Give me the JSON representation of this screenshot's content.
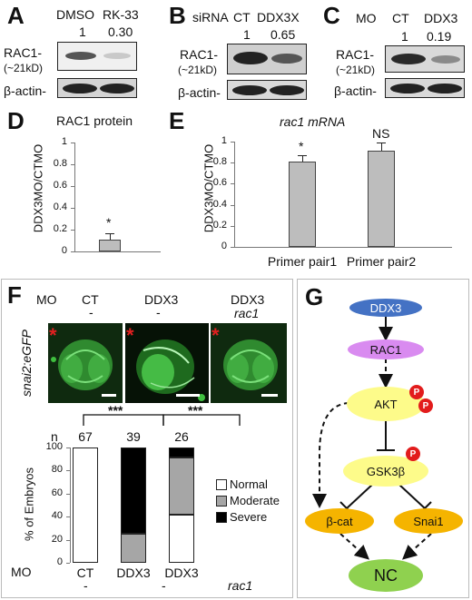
{
  "panels": {
    "A": {
      "letter": "A",
      "conditions": [
        "DMSO",
        "RK-33"
      ],
      "quant": [
        "1",
        "0.30"
      ],
      "rac1_label": "RAC1-",
      "kd_label": "(~21kD)",
      "actin_label": "β-actin-"
    },
    "B": {
      "letter": "B",
      "prefix": "siRNA",
      "conditions": [
        "CT",
        "DDX3X"
      ],
      "quant": [
        "1",
        "0.65"
      ],
      "rac1_label": "RAC1-",
      "kd_label": "(~21kD)",
      "actin_label": "β-actin-"
    },
    "C": {
      "letter": "C",
      "prefix": "MO",
      "conditions": [
        "CT",
        "DDX3"
      ],
      "quant": [
        "1",
        "0.19"
      ],
      "rac1_label": "RAC1-",
      "kd_label": "(~21kD)",
      "actin_label": "β-actin-"
    },
    "D": {
      "letter": "D",
      "title": "RAC1 protein",
      "ylabel": "DDX3MO/CTMO",
      "sig": "*"
    },
    "E": {
      "letter": "E",
      "title": "rac1 mRNA",
      "ylabel": "DDX3MO/CTMO",
      "sig": [
        "*",
        "NS"
      ]
    },
    "F": {
      "letter": "F",
      "mo_label": "MO",
      "col_top": [
        "CT",
        "DDX3",
        "DDX3"
      ],
      "col_sub": [
        "-",
        "-",
        "rac1"
      ],
      "reporter": "snai2:eGFP",
      "sig_left": "***",
      "sig_right": "***",
      "n_label": "n",
      "ylabel": "% of Embryos",
      "xlabel_mo": "MO",
      "legend": [
        "Normal",
        "Moderate",
        "Severe"
      ],
      "colors": {
        "Normal": "#ffffff",
        "Moderate": "#a6a6a6",
        "Severe": "#000000"
      }
    },
    "G": {
      "letter": "G",
      "nodes": {
        "ddx3": "DDX3",
        "rac1": "RAC1",
        "akt": "AKT",
        "gsk": "GSK3β",
        "bcat": "β-cat",
        "snai": "Snai1",
        "nc": "NC"
      },
      "phospho": "P",
      "colors": {
        "ddx3": "#4472c4",
        "rac1": "#d98bf0",
        "akt": "#fdfb8a",
        "gsk": "#fdfb8a",
        "orange": "#f5b400",
        "nc": "#8fd14f"
      }
    }
  },
  "chart_data": [
    {
      "type": "bar",
      "title": "RAC1 protein",
      "ylabel": "DDX3MO/CTMO",
      "categories": [
        ""
      ],
      "values": [
        0.11
      ],
      "errors": [
        0.06
      ],
      "ylim": [
        0,
        1
      ],
      "yticks": [
        0,
        0.2,
        0.4,
        0.6,
        0.8,
        1
      ],
      "ytick_labels": [
        "0",
        "0.2",
        "0.4",
        "0.6",
        "0.8",
        "1"
      ],
      "annotations": [
        "*"
      ]
    },
    {
      "type": "bar",
      "title": "rac1 mRNA",
      "ylabel": "DDX3MO/CTMO",
      "categories": [
        "Primer pair1",
        "Primer pair2"
      ],
      "values": [
        0.81,
        0.91
      ],
      "errors": [
        0.06,
        0.08
      ],
      "ylim": [
        0,
        1
      ],
      "yticks": [
        0,
        0.2,
        0.4,
        0.6,
        0.8,
        1
      ],
      "ytick_labels": [
        "0",
        "0.2",
        "0.4",
        "0.6",
        "0.8",
        "1"
      ],
      "annotations": [
        "*",
        "NS"
      ]
    },
    {
      "type": "bar",
      "stacked": true,
      "ylabel": "% of Embryos",
      "categories": [
        "CT",
        "DDX3",
        "DDX3 rac1"
      ],
      "n": [
        67,
        39,
        26
      ],
      "series": [
        {
          "name": "Normal",
          "values": [
            100,
            0,
            42
          ]
        },
        {
          "name": "Moderate",
          "values": [
            0,
            25,
            49
          ]
        },
        {
          "name": "Severe",
          "values": [
            0,
            75,
            9
          ]
        }
      ],
      "ylim": [
        0,
        100
      ],
      "yticks": [
        0,
        20,
        40,
        60,
        80,
        100
      ],
      "ytick_labels": [
        "0",
        "20",
        "40",
        "60",
        "80",
        "100"
      ]
    }
  ]
}
